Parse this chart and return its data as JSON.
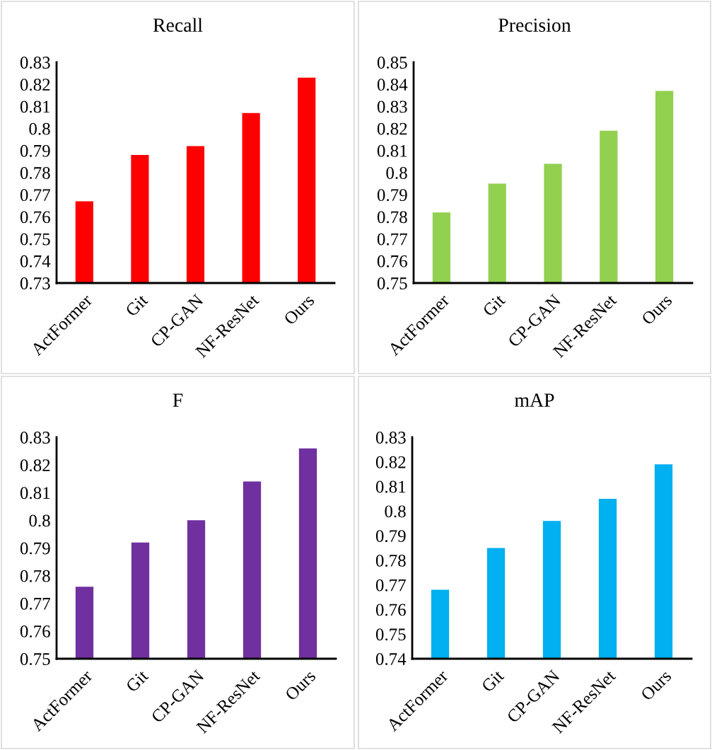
{
  "chart_data": [
    {
      "type": "bar",
      "title": "Recall",
      "categories": [
        "ActFormer",
        "Git",
        "CP-GAN",
        "NF-ResNet",
        "Ours"
      ],
      "values": [
        0.767,
        0.788,
        0.792,
        0.807,
        0.823
      ],
      "color": "#ff0000",
      "ylim": [
        0.73,
        0.83
      ],
      "yticks": [
        0.73,
        0.74,
        0.75,
        0.76,
        0.77,
        0.78,
        0.79,
        0.8,
        0.81,
        0.82,
        0.83
      ]
    },
    {
      "type": "bar",
      "title": "Precision",
      "categories": [
        "ActFormer",
        "Git",
        "CP-GAN",
        "NF-ResNet",
        "Ours"
      ],
      "values": [
        0.782,
        0.795,
        0.804,
        0.819,
        0.837
      ],
      "color": "#92d050",
      "ylim": [
        0.75,
        0.85
      ],
      "yticks": [
        0.75,
        0.76,
        0.77,
        0.78,
        0.79,
        0.8,
        0.81,
        0.82,
        0.83,
        0.84,
        0.85
      ]
    },
    {
      "type": "bar",
      "title": "F",
      "categories": [
        "ActFormer",
        "Git",
        "CP-GAN",
        "NF-ResNet",
        "Ours"
      ],
      "values": [
        0.776,
        0.792,
        0.8,
        0.814,
        0.826
      ],
      "color": "#7030a0",
      "ylim": [
        0.75,
        0.83
      ],
      "yticks": [
        0.75,
        0.76,
        0.77,
        0.78,
        0.79,
        0.8,
        0.81,
        0.82,
        0.83
      ]
    },
    {
      "type": "bar",
      "title": "mAP",
      "categories": [
        "ActFormer",
        "Git",
        "CP-GAN",
        "NF-ResNet",
        "Ours"
      ],
      "values": [
        0.768,
        0.785,
        0.796,
        0.805,
        0.819
      ],
      "color": "#00b0f0",
      "ylim": [
        0.74,
        0.83
      ],
      "yticks": [
        0.74,
        0.75,
        0.76,
        0.77,
        0.78,
        0.79,
        0.8,
        0.81,
        0.82,
        0.83
      ]
    }
  ]
}
